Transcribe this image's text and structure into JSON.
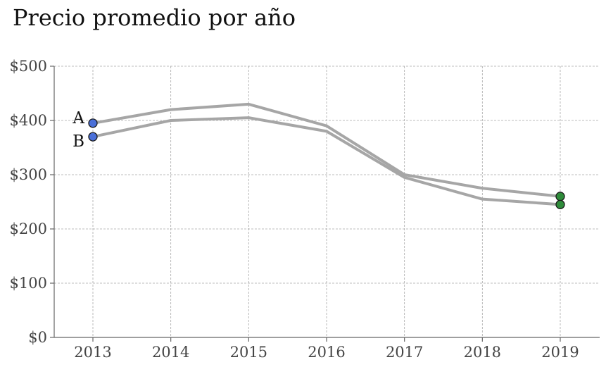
{
  "chart_data": {
    "type": "line",
    "title": "Precio promedio por año",
    "xlabel": "",
    "ylabel": "",
    "x": [
      "2013",
      "2014",
      "2015",
      "2016",
      "2017",
      "2018",
      "2019"
    ],
    "ylim": [
      0,
      500
    ],
    "yticks": [
      0,
      100,
      200,
      300,
      400,
      500
    ],
    "ytick_labels": [
      "$0",
      "$100",
      "$200",
      "$300",
      "$400",
      "$500"
    ],
    "grid": true,
    "series": [
      {
        "name": "A",
        "values": [
          395,
          420,
          430,
          390,
          300,
          275,
          260
        ]
      },
      {
        "name": "B",
        "values": [
          370,
          400,
          405,
          380,
          295,
          255,
          245
        ]
      }
    ],
    "colors": {
      "line": "#a6a6a6",
      "start_marker": "#4a6fd8",
      "end_marker": "#2e8b3a"
    }
  }
}
